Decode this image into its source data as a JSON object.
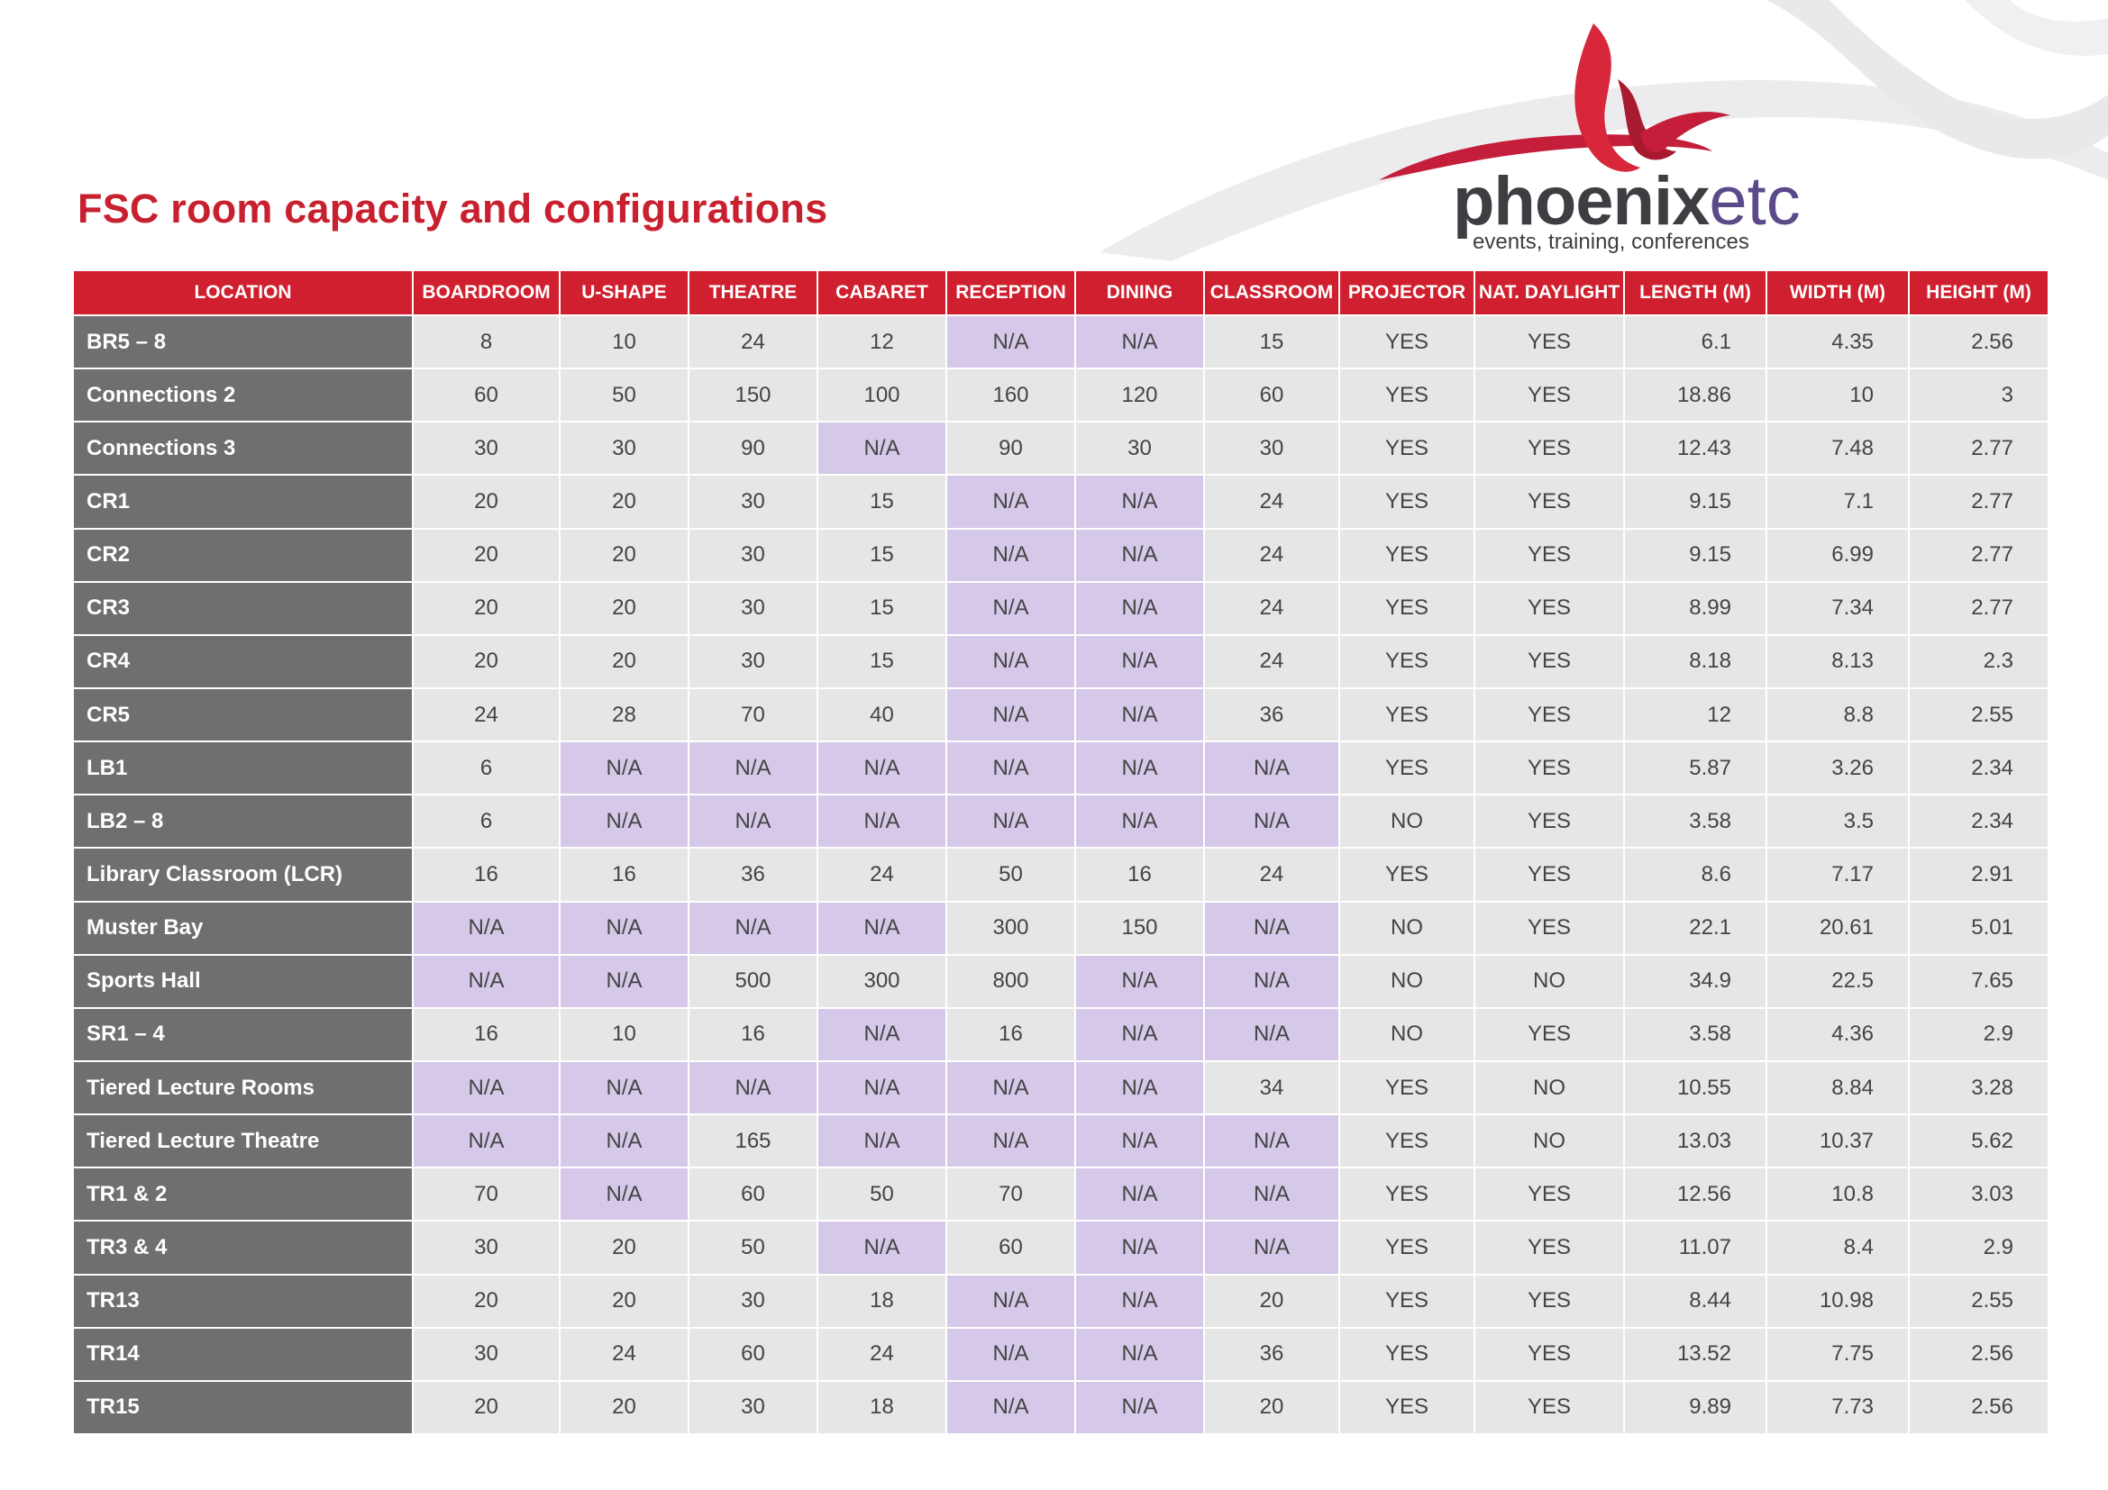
{
  "title": "FSC room capacity and configurations",
  "logo": {
    "word_main": "phoenix",
    "word_accent": "etc",
    "tagline": "events, training, conferences"
  },
  "colors": {
    "brand_red": "#d01f2e",
    "location_cell": "#6f6e70",
    "cell": "#e6e6e6",
    "na_cell": "#d5c8e9",
    "logo_purple": "#5b4a8a"
  },
  "table": {
    "headers": [
      "LOCATION",
      "BOARDROOM",
      "U-SHAPE",
      "THEATRE",
      "CABARET",
      "RECEPTION",
      "DINING",
      "CLASSROOM",
      "PROJECTOR",
      "NAT. DAYLIGHT",
      "LENGTH (M)",
      "WIDTH (M)",
      "HEIGHT (M)"
    ],
    "rows": [
      [
        "BR5 – 8",
        "8",
        "10",
        "24",
        "12",
        "N/A",
        "N/A",
        "15",
        "YES",
        "YES",
        "6.1",
        "4.35",
        "2.56"
      ],
      [
        "Connections 2",
        "60",
        "50",
        "150",
        "100",
        "160",
        "120",
        "60",
        "YES",
        "YES",
        "18.86",
        "10",
        "3"
      ],
      [
        "Connections 3",
        "30",
        "30",
        "90",
        "N/A",
        "90",
        "30",
        "30",
        "YES",
        "YES",
        "12.43",
        "7.48",
        "2.77"
      ],
      [
        "CR1",
        "20",
        "20",
        "30",
        "15",
        "N/A",
        "N/A",
        "24",
        "YES",
        "YES",
        "9.15",
        "7.1",
        "2.77"
      ],
      [
        "CR2",
        "20",
        "20",
        "30",
        "15",
        "N/A",
        "N/A",
        "24",
        "YES",
        "YES",
        "9.15",
        "6.99",
        "2.77"
      ],
      [
        "CR3",
        "20",
        "20",
        "30",
        "15",
        "N/A",
        "N/A",
        "24",
        "YES",
        "YES",
        "8.99",
        "7.34",
        "2.77"
      ],
      [
        "CR4",
        "20",
        "20",
        "30",
        "15",
        "N/A",
        "N/A",
        "24",
        "YES",
        "YES",
        "8.18",
        "8.13",
        "2.3"
      ],
      [
        "CR5",
        "24",
        "28",
        "70",
        "40",
        "N/A",
        "N/A",
        "36",
        "YES",
        "YES",
        "12",
        "8.8",
        "2.55"
      ],
      [
        "LB1",
        "6",
        "N/A",
        "N/A",
        "N/A",
        "N/A",
        "N/A",
        "N/A",
        "YES",
        "YES",
        "5.87",
        "3.26",
        "2.34"
      ],
      [
        "LB2 – 8",
        "6",
        "N/A",
        "N/A",
        "N/A",
        "N/A",
        "N/A",
        "N/A",
        "NO",
        "YES",
        "3.58",
        "3.5",
        "2.34"
      ],
      [
        "Library Classroom (LCR)",
        "16",
        "16",
        "36",
        "24",
        "50",
        "16",
        "24",
        "YES",
        "YES",
        "8.6",
        "7.17",
        "2.91"
      ],
      [
        "Muster Bay",
        "N/A",
        "N/A",
        "N/A",
        "N/A",
        "300",
        "150",
        "N/A",
        "NO",
        "YES",
        "22.1",
        "20.61",
        "5.01"
      ],
      [
        "Sports Hall",
        "N/A",
        "N/A",
        "500",
        "300",
        "800",
        "N/A",
        "N/A",
        "NO",
        "NO",
        "34.9",
        "22.5",
        "7.65"
      ],
      [
        "SR1 – 4",
        "16",
        "10",
        "16",
        "N/A",
        "16",
        "N/A",
        "N/A",
        "NO",
        "YES",
        "3.58",
        "4.36",
        "2.9"
      ],
      [
        "Tiered Lecture Rooms",
        "N/A",
        "N/A",
        "N/A",
        "N/A",
        "N/A",
        "N/A",
        "34",
        "YES",
        "NO",
        "10.55",
        "8.84",
        "3.28"
      ],
      [
        "Tiered Lecture Theatre",
        "N/A",
        "N/A",
        "165",
        "N/A",
        "N/A",
        "N/A",
        "N/A",
        "YES",
        "NO",
        "13.03",
        "10.37",
        "5.62"
      ],
      [
        "TR1 & 2",
        "70",
        "N/A",
        "60",
        "50",
        "70",
        "N/A",
        "N/A",
        "YES",
        "YES",
        "12.56",
        "10.8",
        "3.03"
      ],
      [
        "TR3 & 4",
        "30",
        "20",
        "50",
        "N/A",
        "60",
        "N/A",
        "N/A",
        "YES",
        "YES",
        "11.07",
        "8.4",
        "2.9"
      ],
      [
        "TR13",
        "20",
        "20",
        "30",
        "18",
        "N/A",
        "N/A",
        "20",
        "YES",
        "YES",
        "8.44",
        "10.98",
        "2.55"
      ],
      [
        "TR14",
        "30",
        "24",
        "60",
        "24",
        "N/A",
        "N/A",
        "36",
        "YES",
        "YES",
        "13.52",
        "7.75",
        "2.56"
      ],
      [
        "TR15",
        "20",
        "20",
        "30",
        "18",
        "N/A",
        "N/A",
        "20",
        "YES",
        "YES",
        "9.89",
        "7.73",
        "2.56"
      ]
    ]
  }
}
